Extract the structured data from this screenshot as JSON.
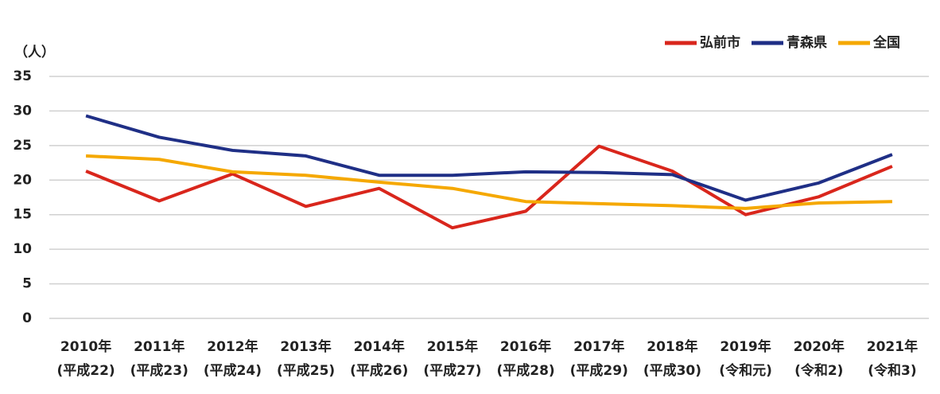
{
  "chart_data": {
    "type": "line",
    "y_unit": "（人）",
    "categories": [
      [
        "2010年",
        "(平成22)"
      ],
      [
        "2011年",
        "(平成23)"
      ],
      [
        "2012年",
        "(平成24)"
      ],
      [
        "2013年",
        "(平成25)"
      ],
      [
        "2014年",
        "(平成26)"
      ],
      [
        "2015年",
        "(平成27)"
      ],
      [
        "2016年",
        "(平成28)"
      ],
      [
        "2017年",
        "(平成29)"
      ],
      [
        "2018年",
        "(平成30)"
      ],
      [
        "2019年",
        "(令和元)"
      ],
      [
        "2020年",
        "(令和2)"
      ],
      [
        "2021年",
        "(令和3)"
      ]
    ],
    "series": [
      {
        "name": "弘前市",
        "color": "#d9261c",
        "values": [
          21.3,
          17.0,
          20.9,
          16.2,
          18.8,
          13.1,
          15.5,
          24.9,
          21.3,
          15.0,
          17.6,
          22.0
        ]
      },
      {
        "name": "青森県",
        "color": "#1f2f86",
        "values": [
          29.3,
          26.2,
          24.3,
          23.5,
          20.7,
          20.7,
          21.2,
          21.1,
          20.8,
          17.1,
          19.6,
          23.7
        ]
      },
      {
        "name": "全国",
        "color": "#f5a800",
        "values": [
          23.5,
          23.0,
          21.2,
          20.7,
          19.7,
          18.8,
          16.9,
          16.6,
          16.3,
          15.9,
          16.7,
          16.9
        ]
      }
    ],
    "ylim": [
      0,
      35
    ],
    "yticks": [
      0,
      5,
      10,
      15,
      20,
      25,
      30,
      35
    ],
    "grid": true,
    "legend": "top-right"
  }
}
